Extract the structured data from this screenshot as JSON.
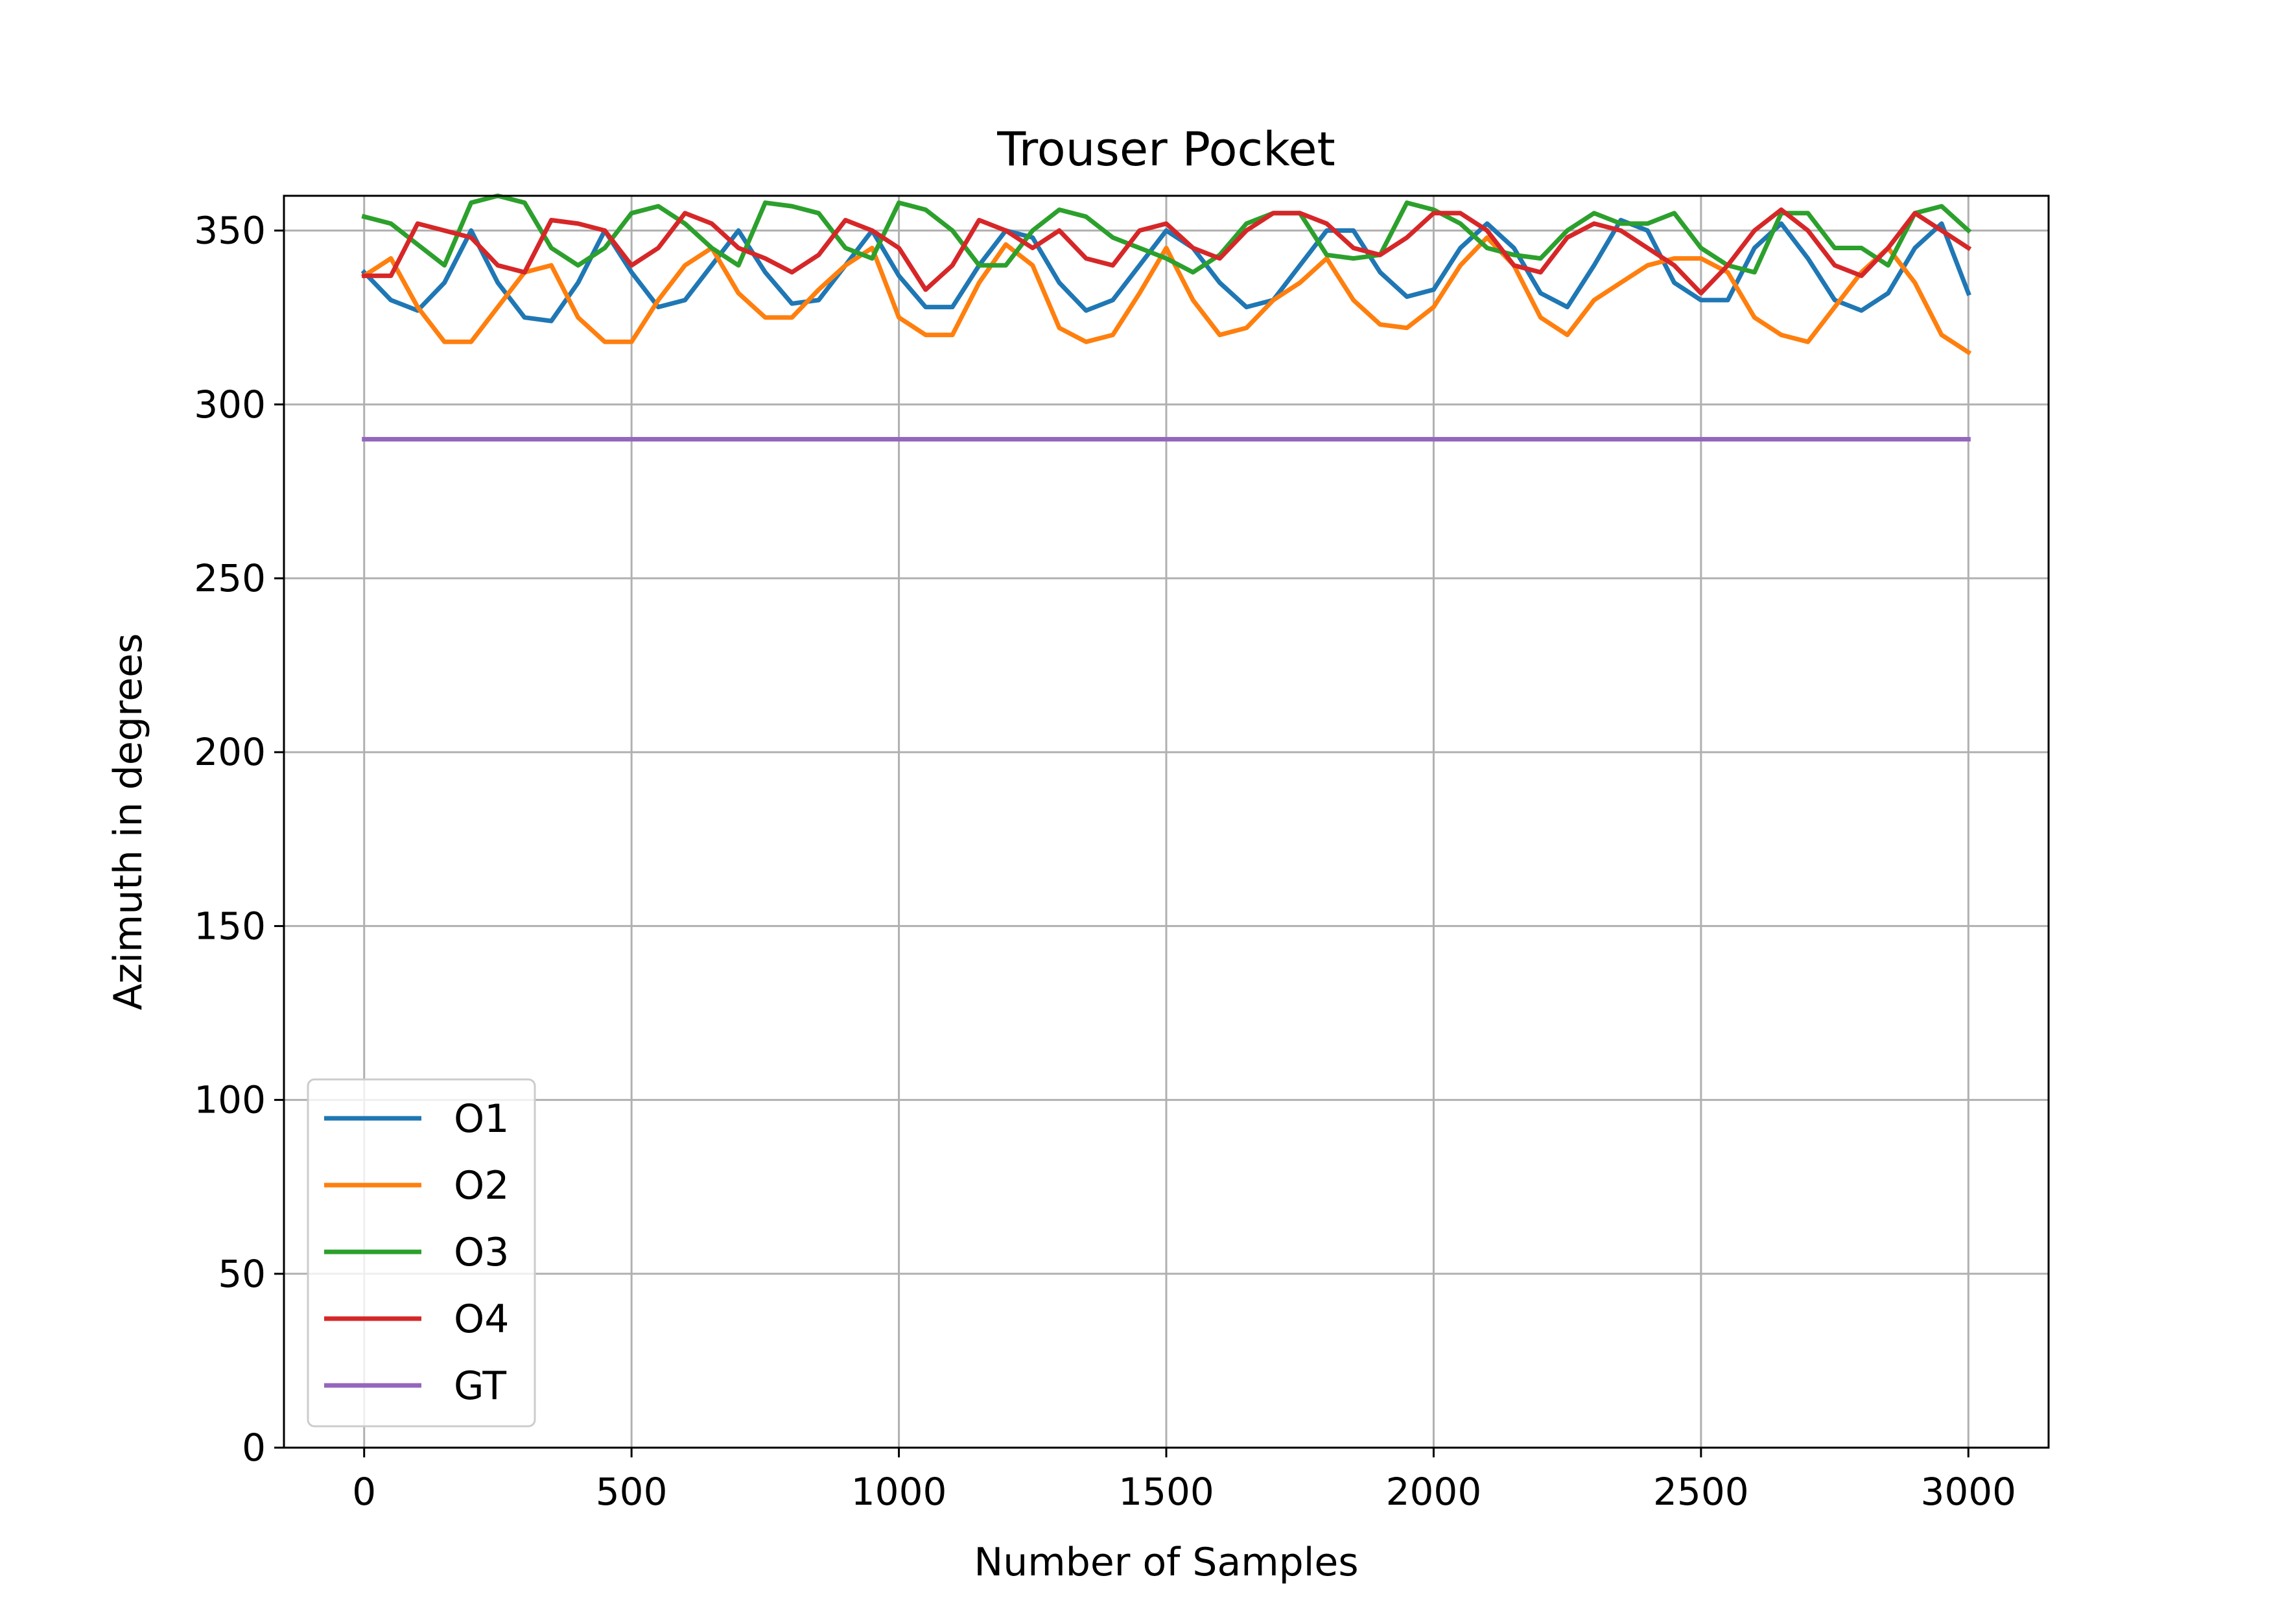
{
  "chart_data": {
    "type": "line",
    "title": "Trouser Pocket",
    "xlabel": "Number of Samples",
    "ylabel": "Azimuth in degrees",
    "xlim": [
      -150,
      3150
    ],
    "ylim": [
      0,
      360
    ],
    "xticks": [
      0,
      500,
      1000,
      1500,
      2000,
      2500,
      3000
    ],
    "yticks": [
      0,
      50,
      100,
      150,
      200,
      250,
      300,
      350
    ],
    "grid": true,
    "legend_position": "lower-left",
    "series": [
      {
        "name": "O1",
        "color": "#1f77b4",
        "x": [
          0,
          50,
          100,
          150,
          200,
          250,
          300,
          350,
          400,
          450,
          500,
          550,
          600,
          650,
          700,
          750,
          800,
          850,
          900,
          950,
          1000,
          1050,
          1100,
          1150,
          1200,
          1250,
          1300,
          1350,
          1400,
          1450,
          1500,
          1550,
          1600,
          1650,
          1700,
          1750,
          1800,
          1850,
          1900,
          1950,
          2000,
          2050,
          2100,
          2150,
          2200,
          2250,
          2300,
          2350,
          2400,
          2450,
          2500,
          2550,
          2600,
          2650,
          2700,
          2750,
          2800,
          2850,
          2900,
          2950,
          3000
        ],
        "y": [
          338,
          330,
          327,
          335,
          350,
          335,
          325,
          324,
          335,
          350,
          338,
          328,
          330,
          340,
          350,
          338,
          329,
          330,
          340,
          350,
          337,
          328,
          328,
          340,
          350,
          348,
          335,
          327,
          330,
          340,
          350,
          345,
          335,
          328,
          330,
          340,
          350,
          350,
          338,
          331,
          333,
          345,
          352,
          345,
          332,
          328,
          340,
          353,
          350,
          335,
          330,
          330,
          345,
          352,
          342,
          330,
          327,
          332,
          345,
          352,
          332
        ]
      },
      {
        "name": "O2",
        "color": "#ff7f0e",
        "x": [
          0,
          50,
          100,
          150,
          200,
          250,
          300,
          350,
          400,
          450,
          500,
          550,
          600,
          650,
          700,
          750,
          800,
          850,
          900,
          950,
          1000,
          1050,
          1100,
          1150,
          1200,
          1250,
          1300,
          1350,
          1400,
          1450,
          1500,
          1550,
          1600,
          1650,
          1700,
          1750,
          1800,
          1850,
          1900,
          1950,
          2000,
          2050,
          2100,
          2150,
          2200,
          2250,
          2300,
          2350,
          2400,
          2450,
          2500,
          2550,
          2600,
          2650,
          2700,
          2750,
          2800,
          2850,
          2900,
          2950,
          3000
        ],
        "y": [
          337,
          342,
          328,
          318,
          318,
          328,
          338,
          340,
          325,
          318,
          318,
          330,
          340,
          345,
          332,
          325,
          325,
          333,
          340,
          345,
          325,
          320,
          320,
          335,
          346,
          340,
          322,
          318,
          320,
          332,
          345,
          330,
          320,
          322,
          330,
          335,
          342,
          330,
          323,
          322,
          328,
          340,
          348,
          340,
          325,
          320,
          330,
          335,
          340,
          342,
          342,
          338,
          325,
          320,
          318,
          328,
          338,
          345,
          335,
          320,
          315
        ]
      },
      {
        "name": "O3",
        "color": "#2ca02c",
        "x": [
          0,
          50,
          100,
          150,
          200,
          250,
          300,
          350,
          400,
          450,
          500,
          550,
          600,
          650,
          700,
          750,
          800,
          850,
          900,
          950,
          1000,
          1050,
          1100,
          1150,
          1200,
          1250,
          1300,
          1350,
          1400,
          1450,
          1500,
          1550,
          1600,
          1650,
          1700,
          1750,
          1800,
          1850,
          1900,
          1950,
          2000,
          2050,
          2100,
          2150,
          2200,
          2250,
          2300,
          2350,
          2400,
          2450,
          2500,
          2550,
          2600,
          2650,
          2700,
          2750,
          2800,
          2850,
          2900,
          2950,
          3000
        ],
        "y": [
          354,
          352,
          346,
          340,
          358,
          360,
          358,
          345,
          340,
          345,
          355,
          357,
          352,
          345,
          340,
          358,
          357,
          355,
          345,
          342,
          358,
          356,
          350,
          340,
          340,
          350,
          356,
          354,
          348,
          345,
          342,
          338,
          343,
          352,
          355,
          355,
          343,
          342,
          343,
          358,
          356,
          352,
          345,
          343,
          342,
          350,
          355,
          352,
          352,
          355,
          345,
          340,
          338,
          355,
          355,
          345,
          345,
          340,
          355,
          357,
          350
        ]
      },
      {
        "name": "O4",
        "color": "#d62728",
        "x": [
          0,
          50,
          100,
          150,
          200,
          250,
          300,
          350,
          400,
          450,
          500,
          550,
          600,
          650,
          700,
          750,
          800,
          850,
          900,
          950,
          1000,
          1050,
          1100,
          1150,
          1200,
          1250,
          1300,
          1350,
          1400,
          1450,
          1500,
          1550,
          1600,
          1650,
          1700,
          1750,
          1800,
          1850,
          1900,
          1950,
          2000,
          2050,
          2100,
          2150,
          2200,
          2250,
          2300,
          2350,
          2400,
          2450,
          2500,
          2550,
          2600,
          2650,
          2700,
          2750,
          2800,
          2850,
          2900,
          2950,
          3000
        ],
        "y": [
          337,
          337,
          352,
          350,
          348,
          340,
          338,
          353,
          352,
          350,
          340,
          345,
          355,
          352,
          345,
          342,
          338,
          343,
          353,
          350,
          345,
          333,
          340,
          353,
          350,
          345,
          350,
          342,
          340,
          350,
          352,
          345,
          342,
          350,
          355,
          355,
          352,
          345,
          343,
          348,
          355,
          355,
          350,
          340,
          338,
          348,
          352,
          350,
          345,
          340,
          332,
          340,
          350,
          356,
          350,
          340,
          337,
          345,
          355,
          350,
          345
        ]
      },
      {
        "name": "GT",
        "color": "#9467bd",
        "x": [
          0,
          3000
        ],
        "y": [
          290,
          290
        ]
      }
    ]
  }
}
